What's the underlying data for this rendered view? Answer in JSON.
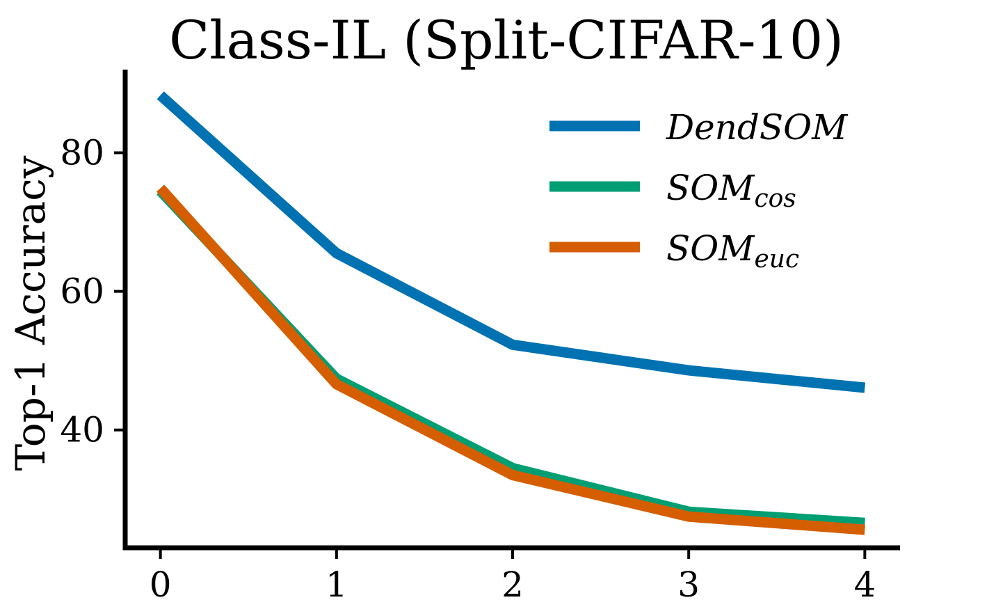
{
  "chart_data": {
    "type": "line",
    "title": "Class-IL (Split-CIFAR-10)",
    "ylabel": "Top-1 Accuracy",
    "xlabel": "",
    "x": [
      0,
      1,
      2,
      3,
      4
    ],
    "xticks": [
      "0",
      "1",
      "2",
      "3",
      "4"
    ],
    "yticks": [
      "40",
      "60",
      "80"
    ],
    "xlim": [
      -0.2,
      4.2
    ],
    "ylim": [
      23,
      92
    ],
    "grid": false,
    "legend_position": "top-right",
    "series": [
      {
        "name": "DendSOM",
        "name_main": "SOM",
        "name_prefix": "Dend",
        "subscript": "",
        "color": "#0072B2",
        "values": [
          88.3,
          65.5,
          52.3,
          48.6,
          46.1
        ]
      },
      {
        "name": "SOMcos",
        "name_main": "SOM",
        "name_prefix": "",
        "subscript": "cos",
        "color": "#009E73",
        "values": [
          74.5,
          47.4,
          34.5,
          28.2,
          26.6
        ]
      },
      {
        "name": "SOMeuc",
        "name_main": "SOM",
        "name_prefix": "",
        "subscript": "euc",
        "color": "#D55E00",
        "values": [
          74.9,
          46.6,
          33.5,
          27.5,
          25.6
        ]
      }
    ]
  }
}
